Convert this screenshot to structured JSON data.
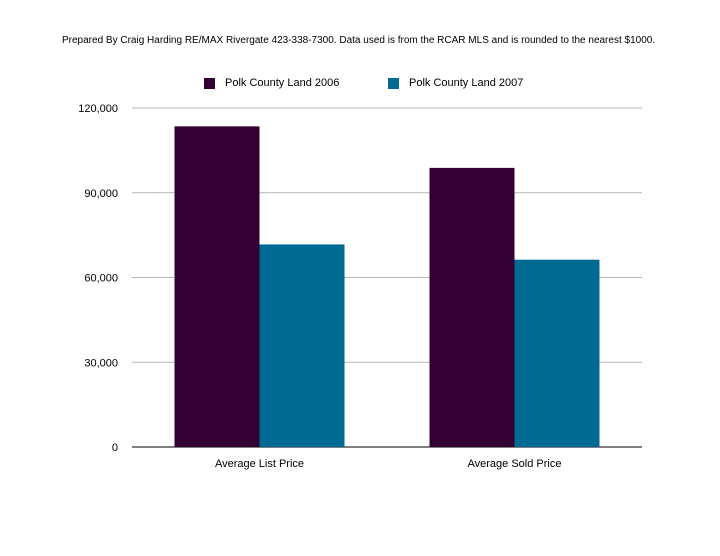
{
  "note": "Prepared By Craig Harding RE/MAX Rivergate 423-338-7300. Data used is from the RCAR MLS and is rounded to the nearest $1000.",
  "chart_data": {
    "type": "bar",
    "categories": [
      "Average List Price",
      "Average Sold Price"
    ],
    "series": [
      {
        "name": "Polk County Land 2006",
        "color": "#330033",
        "values": [
          113500,
          98800
        ]
      },
      {
        "name": "Polk County Land 2007",
        "color": "#006a93",
        "values": [
          71700,
          66300
        ]
      }
    ],
    "yticks": [
      "0",
      "30,000",
      "60,000",
      "90,000",
      "120,000"
    ],
    "ylim": [
      0,
      120000
    ],
    "grid": true,
    "legend": "top"
  }
}
